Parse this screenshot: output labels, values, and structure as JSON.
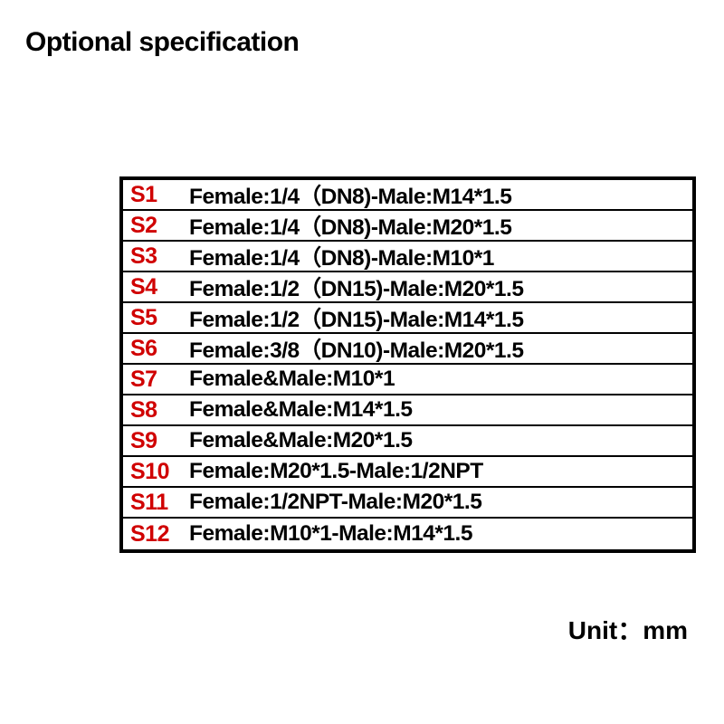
{
  "title": "Optional specification",
  "unit_label": "Unit：mm",
  "table": {
    "border_color": "#000000",
    "code_color": "#d00000",
    "text_color": "#000000",
    "background_color": "#ffffff",
    "code_fontsize": 25,
    "desc_fontsize": 24.5,
    "font_weight": "bold",
    "rows": [
      {
        "code": "S1",
        "desc": "Female:1/4（DN8)-Male:M14*1.5"
      },
      {
        "code": "S2",
        "desc": "Female:1/4（DN8)-Male:M20*1.5"
      },
      {
        "code": "S3",
        "desc": "Female:1/4（DN8)-Male:M10*1"
      },
      {
        "code": "S4",
        "desc": "Female:1/2（DN15)-Male:M20*1.5"
      },
      {
        "code": "S5",
        "desc": "Female:1/2（DN15)-Male:M14*1.5"
      },
      {
        "code": "S6",
        "desc": "Female:3/8（DN10)-Male:M20*1.5"
      },
      {
        "code": "S7",
        "desc": "Female&Male:M10*1"
      },
      {
        "code": "S8",
        "desc": "Female&Male:M14*1.5"
      },
      {
        "code": "S9",
        "desc": "Female&Male:M20*1.5"
      },
      {
        "code": "S10",
        "desc": "Female:M20*1.5-Male:1/2NPT"
      },
      {
        "code": "S11",
        "desc": "Female:1/2NPT-Male:M20*1.5"
      },
      {
        "code": "S12",
        "desc": "Female:M10*1-Male:M14*1.5"
      }
    ]
  }
}
